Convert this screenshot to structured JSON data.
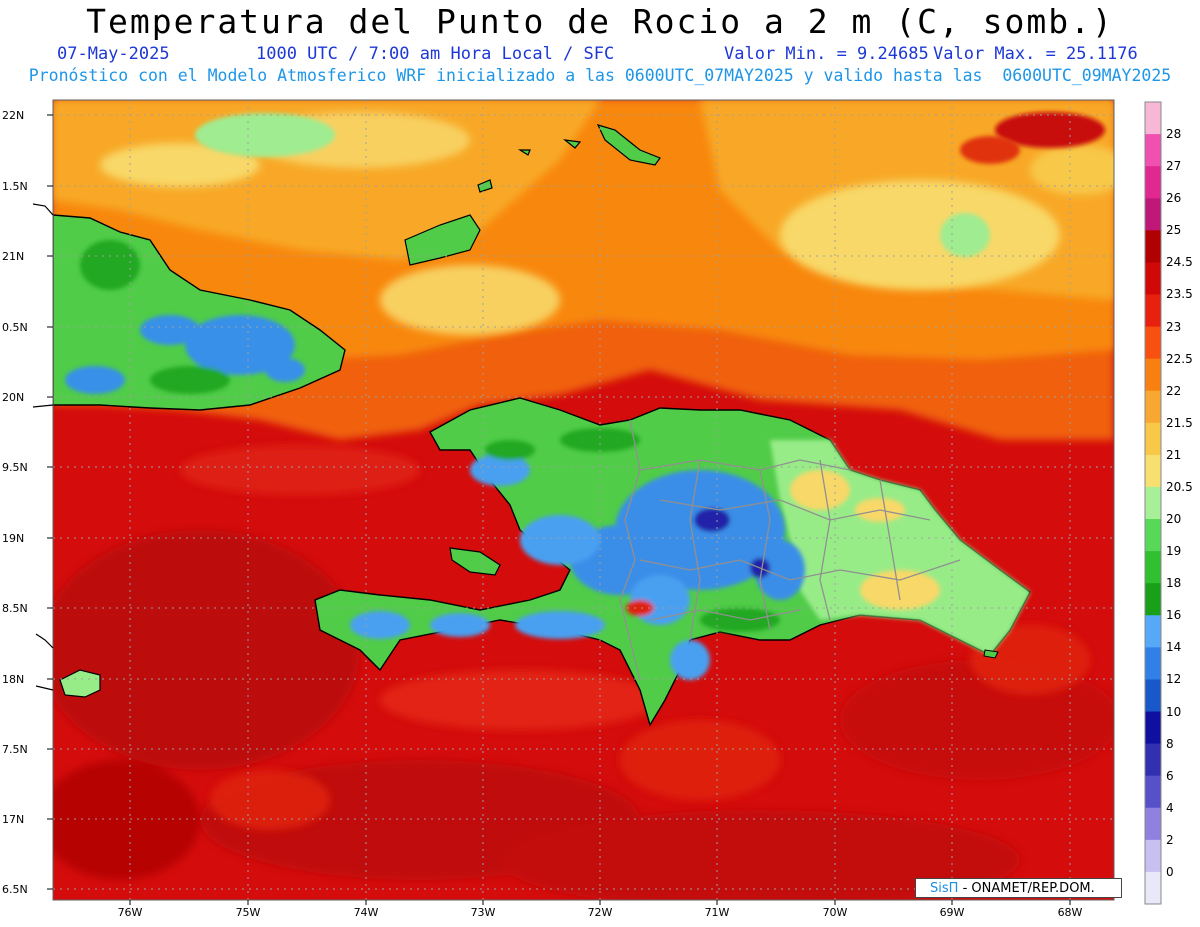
{
  "header": {
    "title": "Temperatura del Punto de Rocio a 2 m (C, somb.)",
    "date": "07-May-2025",
    "time_info": "1000 UTC / 7:00 am Hora Local / SFC",
    "min_value": "Valor Min. = 9.24685",
    "max_value": "Valor Max. = 25.1176",
    "model_info": "Pronóstico con el Modelo Atmosferico WRF inicializado a las 0600UTC_07MAY2025 y valido hasta las  0600UTC_09MAY2025"
  },
  "axes": {
    "lat_ticks": [
      "22N",
      "1.5N",
      "21N",
      "0.5N",
      "20N",
      "9.5N",
      "19N",
      "8.5N",
      "18N",
      "7.5N",
      "17N",
      "6.5N"
    ],
    "lon_ticks": [
      "76W",
      "75W",
      "74W",
      "73W",
      "72W",
      "71W",
      "70W",
      "69W",
      "68W"
    ]
  },
  "colorbar": {
    "labels": [
      "28",
      "27",
      "26",
      "25",
      "24.5",
      "23.5",
      "23",
      "22.5",
      "22",
      "21.5",
      "21",
      "20.5",
      "20",
      "19",
      "18",
      "16",
      "14",
      "12",
      "10",
      "8",
      "6",
      "4",
      "2",
      "0"
    ],
    "colors": [
      "#f7b8d8",
      "#f050b0",
      "#e02890",
      "#c01878",
      "#b00000",
      "#d00808",
      "#e82010",
      "#f85010",
      "#f88010",
      "#f8a830",
      "#f8c848",
      "#f8e070",
      "#a8f098",
      "#58d858",
      "#30c030",
      "#18a018",
      "#58a8f8",
      "#3080e8",
      "#1858c8",
      "#1010a0",
      "#3030b0",
      "#5850c8",
      "#9080e0",
      "#c8c0f0",
      "#e8e8f8"
    ]
  },
  "credit": {
    "brand": "SisΠ",
    "text": "- ONAMET/REP.DOM."
  }
}
